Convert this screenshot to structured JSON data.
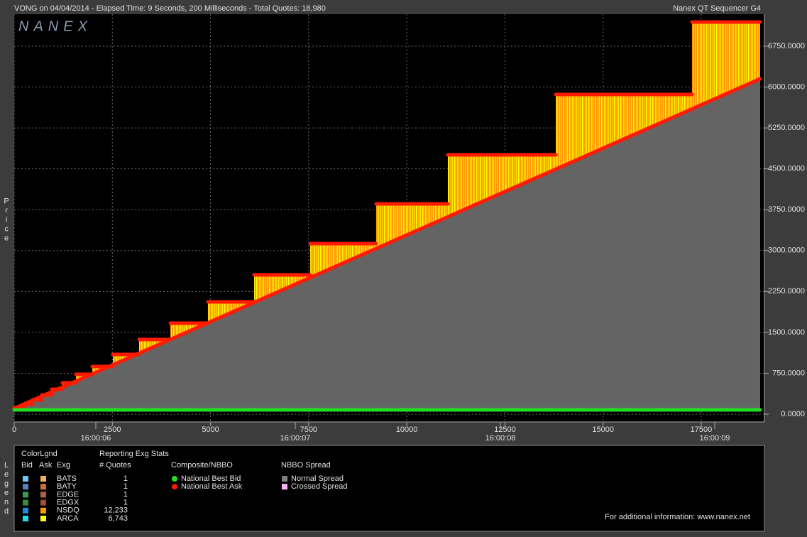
{
  "header": {
    "left": "VONG on 04/04/2014  -  Elapsed Time: 9 Seconds, 200 Milliseconds  -  Total Quotes: 18,980",
    "right": "Nanex QT Sequencer G4",
    "watermark": "NANEX"
  },
  "chart_data": {
    "type": "step",
    "y_label": "Price",
    "xlim": [
      0,
      19110
    ],
    "ylim": [
      -143,
      7336
    ],
    "xticks": [
      0,
      2500,
      5000,
      7500,
      10000,
      12500,
      15000,
      17500
    ],
    "time_ticks": [
      {
        "value": 2079,
        "label": "16:00:06"
      },
      {
        "value": 7160,
        "label": "16:00:07"
      },
      {
        "value": 12385,
        "label": "16:00:08"
      },
      {
        "value": 17845,
        "label": "16:00:09"
      }
    ],
    "yticks": [
      {
        "value": 0,
        "label": "0.0000"
      },
      {
        "value": 750,
        "label": "750.0000"
      },
      {
        "value": 1500,
        "label": "1500.0000"
      },
      {
        "value": 2250,
        "label": "2250.0000"
      },
      {
        "value": 3000,
        "label": "3000.0000"
      },
      {
        "value": 3750,
        "label": "3750.0000"
      },
      {
        "value": 4500,
        "label": "4500.0000"
      },
      {
        "value": 5250,
        "label": "5250.0000"
      },
      {
        "value": 6000,
        "label": "6000.0000"
      },
      {
        "value": 6750,
        "label": "6750.0000"
      }
    ],
    "grid": true,
    "series": [
      {
        "name": "National Best Bid",
        "color": "#22dd22",
        "x": [
          0,
          19000
        ],
        "values": [
          78,
          78
        ]
      },
      {
        "name": "National Best Ask",
        "color": "#ff1a00",
        "x": [
          0,
          271,
          470,
          705,
          958,
          1229,
          1573,
          1989,
          2513,
          3182,
          3978,
          4936,
          6111,
          7540,
          9220,
          11047,
          13795,
          17265
        ],
        "values": [
          117,
          182,
          261,
          352,
          456,
          573,
          730,
          873,
          1095,
          1368,
          1668,
          2059,
          2554,
          3127,
          3857,
          4756,
          5864,
          7193
        ]
      },
      {
        "color": "#ff1a00",
        "x": [
          0,
          19000
        ],
        "values": [
          104,
          6150
        ]
      }
    ],
    "spread_color": "#646464"
  },
  "legend": {
    "title": "Legend",
    "color_title": "ColorLgnd",
    "bid": "Bid",
    "ask": "Ask",
    "exg": "Exg",
    "stats_title": "Reporting Exg Stats",
    "quotes_header": "# Quotes",
    "rows": [
      {
        "exg": "BATS",
        "bid_color": "#6ec6f0",
        "ask_color": "#f0b060",
        "quotes": "1"
      },
      {
        "exg": "BATY",
        "bid_color": "#5b7fc0",
        "ask_color": "#d07030",
        "quotes": "1"
      },
      {
        "exg": "EDGE",
        "bid_color": "#3e9a50",
        "ask_color": "#b06040",
        "quotes": "1"
      },
      {
        "exg": "EDGX",
        "bid_color": "#3a8a3a",
        "ask_color": "#a05030",
        "quotes": "1"
      },
      {
        "exg": "NSDQ",
        "bid_color": "#2288dd",
        "ask_color": "#ff9900",
        "quotes": "12,233"
      },
      {
        "exg": "ARCA",
        "bid_color": "#22ddee",
        "ask_color": "#ffff00",
        "quotes": "6,743"
      }
    ],
    "composite_title": "Composite/NBBO",
    "spread_title": "NBBO Spread",
    "spreads": [
      {
        "name": "Normal Spread",
        "color": "#808080"
      },
      {
        "name": "Crossed Spread",
        "color": "#ffb0ff"
      }
    ],
    "info": "For additional information: www.nanex.net"
  }
}
